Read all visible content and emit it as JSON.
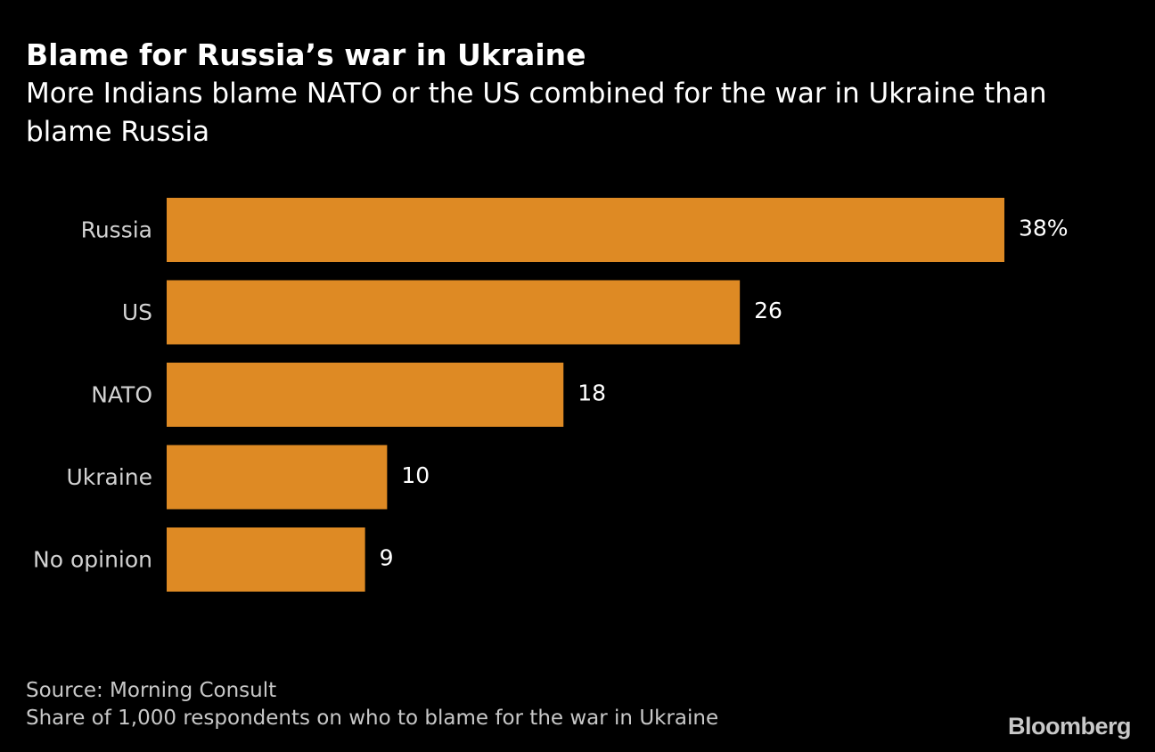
{
  "chart_data": {
    "type": "bar",
    "orientation": "horizontal",
    "title": "Blame for Russia’s war in Ukraine",
    "subtitle": "More Indians blame NATO or the US combined for the war in Ukraine than blame Russia",
    "categories": [
      "Russia",
      "US",
      "NATO",
      "Ukraine",
      "No opinion"
    ],
    "values": [
      38,
      26,
      18,
      10,
      9
    ],
    "value_labels": [
      "38%",
      "26",
      "18",
      "10",
      "9"
    ],
    "unit": "%",
    "xlim": [
      0,
      38
    ],
    "xlabel": "",
    "ylabel": "",
    "grid": false,
    "bar_color": "#DE8A24"
  },
  "footer": {
    "source": "Source: Morning Consult",
    "note": "Share of 1,000 respondents on who to blame for the war in Ukraine"
  },
  "brand": {
    "logo_text": "Bloomberg"
  },
  "colors": {
    "background": "#000000",
    "text": "#FFFFFF",
    "footer_text": "#C8C8C8",
    "bar": "#DE8A24"
  }
}
